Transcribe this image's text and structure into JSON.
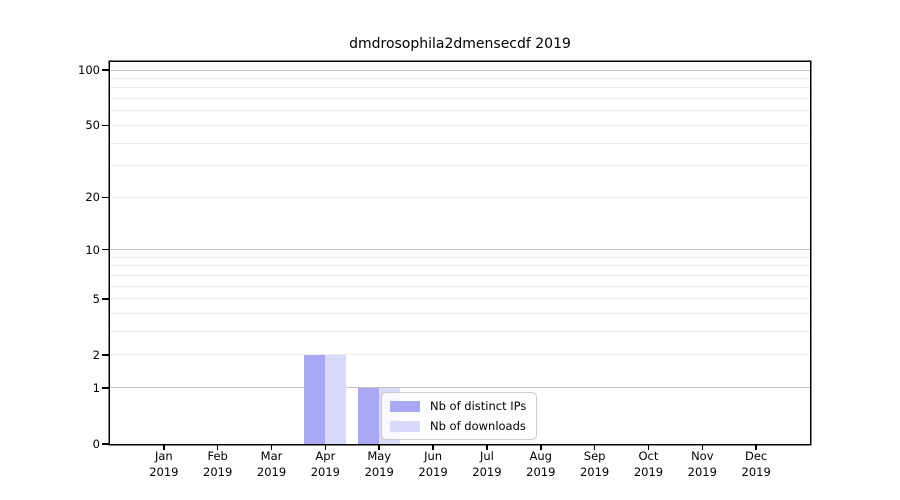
{
  "figure": {
    "background": "#ffffff",
    "axis_color": "#000000",
    "text_color": "#000000"
  },
  "chart_data": {
    "type": "bar",
    "title": "dmdrosophila2dmensecdf 2019",
    "year": "2019",
    "categories": [
      "Jan",
      "Feb",
      "Mar",
      "Apr",
      "May",
      "Jun",
      "Jul",
      "Aug",
      "Sep",
      "Oct",
      "Nov",
      "Dec"
    ],
    "series": [
      {
        "name": "Nb of distinct IPs",
        "color": "#a8a8f6",
        "values": [
          0,
          0,
          0,
          2,
          1,
          0,
          0,
          0,
          0,
          0,
          0,
          0
        ]
      },
      {
        "name": "Nb of downloads",
        "color": "#d9d9f9",
        "values": [
          0,
          0,
          0,
          2,
          1,
          0,
          0,
          0,
          0,
          0,
          0,
          0
        ]
      }
    ],
    "xlabel": "",
    "ylabel": "",
    "y_ticks": [
      0,
      1,
      2,
      5,
      10,
      20,
      50,
      100
    ],
    "scale": "log1p",
    "ylim": [
      0,
      109
    ],
    "grid": {
      "major_values": [
        1,
        10,
        100
      ],
      "minor_values": [
        2,
        3,
        4,
        5,
        6,
        7,
        8,
        9,
        20,
        30,
        40,
        50,
        60,
        70,
        80,
        90
      ],
      "major_color": "#c3c3c3",
      "minor_color": "#ececec"
    },
    "legend": {
      "position": "inside-bottom-center",
      "background": "rgba(255,255,255,0.8)",
      "border_color": "#cccccc"
    }
  }
}
